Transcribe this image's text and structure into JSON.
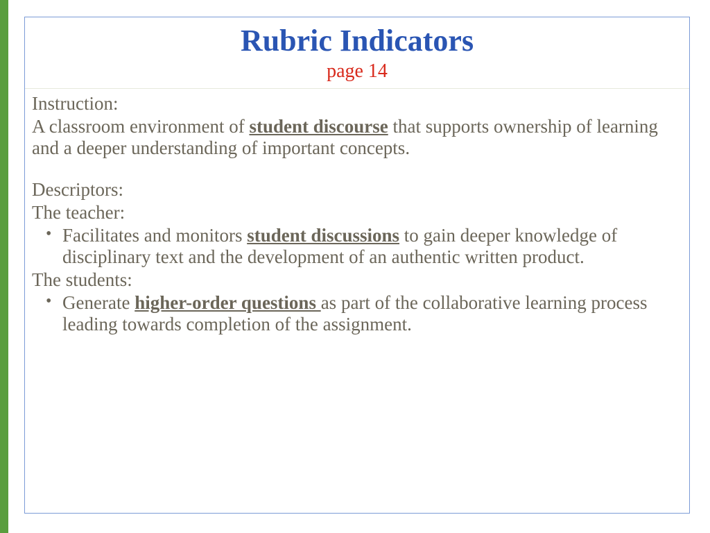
{
  "colors": {
    "accent_bar": "#5a9e3f",
    "frame_border": "#7b9bd6",
    "divider": "#e7e9dc",
    "title": "#2a55b3",
    "subtitle": "#d82a1c",
    "body_text": "#6b6659",
    "slide_bg": "#ffffff"
  },
  "title": "Rubric Indicators",
  "subtitle": "page 14",
  "instruction_label": "Instruction:",
  "instruction_text_pre": "A classroom environment of ",
  "instruction_bold": "student discourse",
  "instruction_text_post": " that supports ownership of learning and a deeper understanding of important concepts.",
  "descriptors_label": "Descriptors:",
  "teacher_label": "The teacher:",
  "teacher_b1_pre": "Facilitates and monitors ",
  "teacher_b1_bold": "student discussions",
  "teacher_b1_post": " to gain deeper knowledge of disciplinary text and the development of an authentic written product.",
  "students_label": "The students:",
  "students_b1_pre": "Generate ",
  "students_b1_bold": "higher-order questions ",
  "students_b1_post": "as part of the collaborative learning process leading towards completion of the assignment."
}
